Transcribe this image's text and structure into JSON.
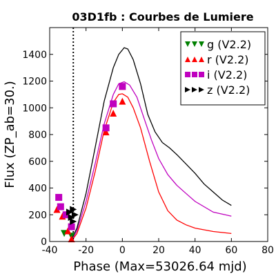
{
  "chart_data": {
    "type": "scatter",
    "title": "03D1fb : Courbes de Lumiere",
    "xlabel": "Phase (Max=53026.64 mjd)",
    "ylabel": "Flux (ZP_ab=30.)",
    "xlim": [
      -40,
      80
    ],
    "ylim": [
      0,
      1600
    ],
    "xticks": [
      -40,
      -20,
      0,
      20,
      40,
      60,
      80
    ],
    "yticks": [
      0,
      200,
      400,
      600,
      800,
      1000,
      1200,
      1400
    ],
    "vline_x": -27,
    "legend_position": "top-right",
    "series": [
      {
        "name": "g (V2.2)",
        "marker": "triangle-down",
        "color": "#008000",
        "points": [
          [
            -32,
            60
          ],
          [
            -28,
            40
          ]
        ],
        "model": []
      },
      {
        "name": "r (V2.2)",
        "marker": "triangle-up",
        "color": "#ff0000",
        "points": [
          [
            -36,
            240
          ],
          [
            -33,
            190
          ],
          [
            -30,
            80
          ],
          [
            -28,
            20
          ],
          [
            -9,
            820
          ],
          [
            -5,
            960
          ],
          [
            0,
            1050
          ],
          [
            0,
            1160
          ]
        ],
        "model": [
          [
            -28,
            5
          ],
          [
            -25,
            60
          ],
          [
            -20,
            250
          ],
          [
            -15,
            520
          ],
          [
            -10,
            830
          ],
          [
            -5,
            1040
          ],
          [
            -2,
            1100
          ],
          [
            0,
            1105
          ],
          [
            3,
            1080
          ],
          [
            6,
            1000
          ],
          [
            10,
            850
          ],
          [
            15,
            600
          ],
          [
            20,
            370
          ],
          [
            25,
            230
          ],
          [
            30,
            160
          ],
          [
            35,
            125
          ],
          [
            40,
            100
          ],
          [
            50,
            75
          ],
          [
            60,
            60
          ]
        ]
      },
      {
        "name": "i (V2.2)",
        "marker": "square",
        "color": "#bf00bf",
        "points": [
          [
            -35,
            330
          ],
          [
            -34,
            260
          ],
          [
            -31,
            200
          ],
          [
            -28,
            110
          ],
          [
            -9,
            850
          ],
          [
            -5,
            1030
          ],
          [
            0,
            1160
          ]
        ],
        "model": [
          [
            -28,
            10
          ],
          [
            -25,
            80
          ],
          [
            -20,
            300
          ],
          [
            -15,
            580
          ],
          [
            -10,
            880
          ],
          [
            -5,
            1100
          ],
          [
            -2,
            1180
          ],
          [
            1,
            1195
          ],
          [
            4,
            1170
          ],
          [
            8,
            1080
          ],
          [
            12,
            920
          ],
          [
            16,
            760
          ],
          [
            20,
            620
          ],
          [
            25,
            500
          ],
          [
            30,
            420
          ],
          [
            35,
            360
          ],
          [
            40,
            300
          ],
          [
            50,
            220
          ],
          [
            60,
            190
          ]
        ]
      },
      {
        "name": "z (V2.2)",
        "marker": "triangle-right",
        "color": "#000000",
        "points": [
          [
            -29,
            220
          ],
          [
            -28,
            180
          ],
          [
            -27,
            240
          ],
          [
            -27,
            150
          ],
          [
            -26,
            200
          ]
        ],
        "model": [
          [
            -28,
            15
          ],
          [
            -25,
            100
          ],
          [
            -20,
            360
          ],
          [
            -15,
            700
          ],
          [
            -10,
            1050
          ],
          [
            -5,
            1300
          ],
          [
            -2,
            1400
          ],
          [
            1,
            1450
          ],
          [
            3,
            1440
          ],
          [
            6,
            1360
          ],
          [
            10,
            1180
          ],
          [
            14,
            950
          ],
          [
            18,
            820
          ],
          [
            22,
            740
          ],
          [
            26,
            700
          ],
          [
            30,
            650
          ],
          [
            35,
            580
          ],
          [
            40,
            510
          ],
          [
            45,
            430
          ],
          [
            50,
            370
          ],
          [
            55,
            310
          ],
          [
            60,
            270
          ]
        ]
      }
    ]
  }
}
